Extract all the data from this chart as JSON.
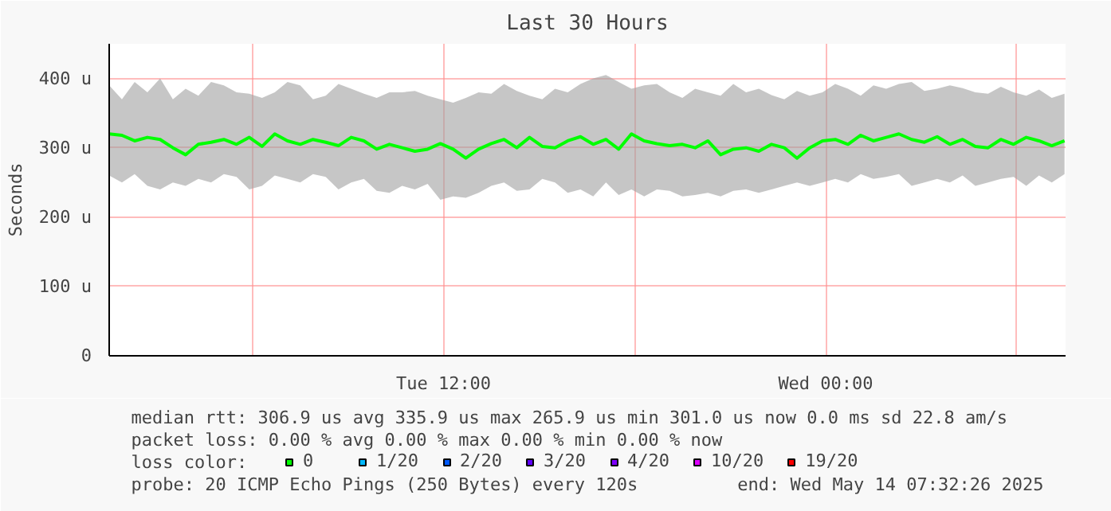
{
  "chart_data": {
    "type": "line",
    "title": "Last 30 Hours",
    "ylabel": "Seconds",
    "legend_title": "loss color:",
    "xlim": [
      "2025-05-13T01:30",
      "2025-05-14T07:32"
    ],
    "ylim": [
      0,
      450
    ],
    "xticks": [
      {
        "value": "2025-05-13T06:00",
        "label": null
      },
      {
        "value": "2025-05-13T12:00",
        "label": "Tue 12:00"
      },
      {
        "value": "2025-05-13T18:00",
        "label": null
      },
      {
        "value": "2025-05-14T00:00",
        "label": "Wed 00:00"
      },
      {
        "value": "2025-05-14T06:00",
        "label": null
      }
    ],
    "yticks": [
      {
        "value": 0,
        "label": "0"
      },
      {
        "value": 100,
        "label": "100 u"
      },
      {
        "value": 200,
        "label": "200 u"
      },
      {
        "value": 300,
        "label": "300 u"
      },
      {
        "value": 400,
        "label": "400 u"
      }
    ],
    "x": [
      "2025-05-13T01:30",
      "2025-05-13T01:54",
      "2025-05-13T02:18",
      "2025-05-13T02:42",
      "2025-05-13T03:06",
      "2025-05-13T03:30",
      "2025-05-13T03:54",
      "2025-05-13T04:18",
      "2025-05-13T04:42",
      "2025-05-13T05:06",
      "2025-05-13T05:30",
      "2025-05-13T05:54",
      "2025-05-13T06:18",
      "2025-05-13T06:42",
      "2025-05-13T07:06",
      "2025-05-13T07:30",
      "2025-05-13T07:54",
      "2025-05-13T08:18",
      "2025-05-13T08:42",
      "2025-05-13T09:06",
      "2025-05-13T09:30",
      "2025-05-13T09:54",
      "2025-05-13T10:18",
      "2025-05-13T10:42",
      "2025-05-13T11:06",
      "2025-05-13T11:30",
      "2025-05-13T11:54",
      "2025-05-13T12:18",
      "2025-05-13T12:42",
      "2025-05-13T13:06",
      "2025-05-13T13:30",
      "2025-05-13T13:54",
      "2025-05-13T14:18",
      "2025-05-13T14:42",
      "2025-05-13T15:06",
      "2025-05-13T15:30",
      "2025-05-13T15:54",
      "2025-05-13T16:18",
      "2025-05-13T16:42",
      "2025-05-13T17:06",
      "2025-05-13T17:30",
      "2025-05-13T17:54",
      "2025-05-13T18:18",
      "2025-05-13T18:42",
      "2025-05-13T19:06",
      "2025-05-13T19:30",
      "2025-05-13T19:54",
      "2025-05-13T20:18",
      "2025-05-13T20:42",
      "2025-05-13T21:06",
      "2025-05-13T21:30",
      "2025-05-13T21:54",
      "2025-05-13T22:18",
      "2025-05-13T22:42",
      "2025-05-13T23:06",
      "2025-05-13T23:30",
      "2025-05-13T23:54",
      "2025-05-14T00:18",
      "2025-05-14T00:42",
      "2025-05-14T01:06",
      "2025-05-14T01:30",
      "2025-05-14T01:54",
      "2025-05-14T02:18",
      "2025-05-14T02:42",
      "2025-05-14T03:06",
      "2025-05-14T03:30",
      "2025-05-14T03:54",
      "2025-05-14T04:18",
      "2025-05-14T04:42",
      "2025-05-14T05:06",
      "2025-05-14T05:30",
      "2025-05-14T05:54",
      "2025-05-14T06:18",
      "2025-05-14T06:42",
      "2025-05-14T07:06",
      "2025-05-14T07:30"
    ],
    "series": [
      {
        "name": "0",
        "color": "#00ff00",
        "values": [
          320,
          318,
          310,
          315,
          312,
          300,
          290,
          305,
          308,
          312,
          305,
          315,
          302,
          320,
          310,
          305,
          312,
          308,
          303,
          315,
          310,
          298,
          305,
          300,
          295,
          298,
          306,
          298,
          285,
          298,
          306,
          312,
          300,
          315,
          302,
          300,
          310,
          316,
          305,
          312,
          298,
          320,
          310,
          306,
          303,
          305,
          300,
          310,
          290,
          298,
          300,
          295,
          305,
          300,
          285,
          300,
          310,
          312,
          305,
          318,
          310,
          315,
          320,
          312,
          308,
          316,
          305,
          312,
          302,
          300,
          312,
          305,
          315,
          310,
          303,
          310
        ],
        "lower": [
          260,
          250,
          262,
          245,
          240,
          250,
          245,
          255,
          250,
          262,
          258,
          240,
          245,
          260,
          255,
          250,
          262,
          258,
          240,
          250,
          255,
          238,
          235,
          245,
          240,
          248,
          225,
          230,
          228,
          235,
          245,
          250,
          238,
          240,
          255,
          250,
          235,
          240,
          230,
          250,
          232,
          240,
          230,
          240,
          238,
          230,
          232,
          235,
          230,
          238,
          240,
          235,
          240,
          245,
          250,
          245,
          250,
          255,
          250,
          262,
          255,
          258,
          262,
          245,
          250,
          255,
          250,
          260,
          245,
          250,
          255,
          258,
          245,
          260,
          250,
          262
        ],
        "upper": [
          390,
          370,
          395,
          380,
          400,
          370,
          385,
          375,
          395,
          390,
          380,
          378,
          372,
          380,
          395,
          390,
          370,
          375,
          392,
          385,
          378,
          372,
          380,
          380,
          382,
          375,
          370,
          365,
          372,
          380,
          378,
          392,
          382,
          375,
          370,
          385,
          380,
          392,
          400,
          405,
          395,
          385,
          390,
          392,
          380,
          372,
          385,
          380,
          375,
          392,
          380,
          385,
          376,
          370,
          382,
          375,
          380,
          392,
          385,
          375,
          390,
          385,
          392,
          395,
          382,
          385,
          390,
          386,
          380,
          378,
          388,
          380,
          375,
          384,
          372,
          378
        ]
      },
      {
        "name": "1/20",
        "color": "#00b8ff",
        "values": [
          null,
          null,
          null,
          null,
          null,
          null,
          null,
          null,
          null,
          null,
          null,
          null,
          null,
          null,
          null,
          null,
          null,
          null,
          null,
          null,
          null,
          null,
          null,
          null,
          null,
          null,
          null,
          null,
          null,
          null,
          null,
          null,
          null,
          null,
          null,
          null,
          null,
          null,
          null,
          null,
          null,
          null,
          null,
          null,
          null,
          null,
          null,
          null,
          null,
          null,
          null,
          null,
          null,
          null,
          null,
          null,
          null,
          null,
          null,
          null,
          null,
          null,
          null,
          null,
          null,
          null,
          null,
          null,
          null,
          null,
          null,
          null,
          null,
          null,
          null,
          null
        ]
      },
      {
        "name": "2/20",
        "color": "#0059ff",
        "values": [
          null,
          null,
          null,
          null,
          null,
          null,
          null,
          null,
          null,
          null,
          null,
          null,
          null,
          null,
          null,
          null,
          null,
          null,
          null,
          null,
          null,
          null,
          null,
          null,
          null,
          null,
          null,
          null,
          null,
          null,
          null,
          null,
          null,
          null,
          null,
          null,
          null,
          null,
          null,
          null,
          null,
          null,
          null,
          null,
          null,
          null,
          null,
          null,
          null,
          null,
          null,
          null,
          null,
          null,
          null,
          null,
          null,
          null,
          null,
          null,
          null,
          null,
          null,
          null,
          null,
          null,
          null,
          null,
          null,
          null,
          null,
          null,
          null,
          null,
          null,
          null
        ]
      },
      {
        "name": "3/20",
        "color": "#5e00ff",
        "values": [
          null,
          null,
          null,
          null,
          null,
          null,
          null,
          null,
          null,
          null,
          null,
          null,
          null,
          null,
          null,
          null,
          null,
          null,
          null,
          null,
          null,
          null,
          null,
          null,
          null,
          null,
          null,
          null,
          null,
          null,
          null,
          null,
          null,
          null,
          null,
          null,
          null,
          null,
          null,
          null,
          null,
          null,
          null,
          null,
          null,
          null,
          null,
          null,
          null,
          null,
          null,
          null,
          null,
          null,
          null,
          null,
          null,
          null,
          null,
          null,
          null,
          null,
          null,
          null,
          null,
          null,
          null,
          null,
          null,
          null,
          null,
          null,
          null,
          null,
          null,
          null
        ]
      },
      {
        "name": "4/20",
        "color": "#7e00ff",
        "values": [
          null,
          null,
          null,
          null,
          null,
          null,
          null,
          null,
          null,
          null,
          null,
          null,
          null,
          null,
          null,
          null,
          null,
          null,
          null,
          null,
          null,
          null,
          null,
          null,
          null,
          null,
          null,
          null,
          null,
          null,
          null,
          null,
          null,
          null,
          null,
          null,
          null,
          null,
          null,
          null,
          null,
          null,
          null,
          null,
          null,
          null,
          null,
          null,
          null,
          null,
          null,
          null,
          null,
          null,
          null,
          null,
          null,
          null,
          null,
          null,
          null,
          null,
          null,
          null,
          null,
          null,
          null,
          null,
          null,
          null,
          null,
          null,
          null,
          null,
          null,
          null
        ]
      },
      {
        "name": "10/20",
        "color": "#dd00ff",
        "values": [
          null,
          null,
          null,
          null,
          null,
          null,
          null,
          null,
          null,
          null,
          null,
          null,
          null,
          null,
          null,
          null,
          null,
          null,
          null,
          null,
          null,
          null,
          null,
          null,
          null,
          null,
          null,
          null,
          null,
          null,
          null,
          null,
          null,
          null,
          null,
          null,
          null,
          null,
          null,
          null,
          null,
          null,
          null,
          null,
          null,
          null,
          null,
          null,
          null,
          null,
          null,
          null,
          null,
          null,
          null,
          null,
          null,
          null,
          null,
          null,
          null,
          null,
          null,
          null,
          null,
          null,
          null,
          null,
          null,
          null,
          null,
          null,
          null,
          null,
          null,
          null
        ]
      },
      {
        "name": "19/20",
        "color": "#ff0000",
        "values": [
          null,
          null,
          null,
          null,
          null,
          null,
          null,
          null,
          null,
          null,
          null,
          null,
          null,
          null,
          null,
          null,
          null,
          null,
          null,
          null,
          null,
          null,
          null,
          null,
          null,
          null,
          null,
          null,
          null,
          null,
          null,
          null,
          null,
          null,
          null,
          null,
          null,
          null,
          null,
          null,
          null,
          null,
          null,
          null,
          null,
          null,
          null,
          null,
          null,
          null,
          null,
          null,
          null,
          null,
          null,
          null,
          null,
          null,
          null,
          null,
          null,
          null,
          null,
          null,
          null,
          null,
          null,
          null,
          null,
          null,
          null,
          null,
          null,
          null,
          null,
          null
        ]
      }
    ],
    "grid": true,
    "legend": "bottom",
    "annotations": [
      "median rtt:  306.9 us avg  335.9 us max  265.9 us min  301.0 us now  0.0 ms sd  22.8   am/s",
      "packet loss: 0.00 % avg  0.00 % max  0.00 % min  0.00 % now",
      "probe:         20 ICMP Echo Pings (250 Bytes) every 120s",
      "end: Wed May 14 07:32:26 2025"
    ]
  }
}
